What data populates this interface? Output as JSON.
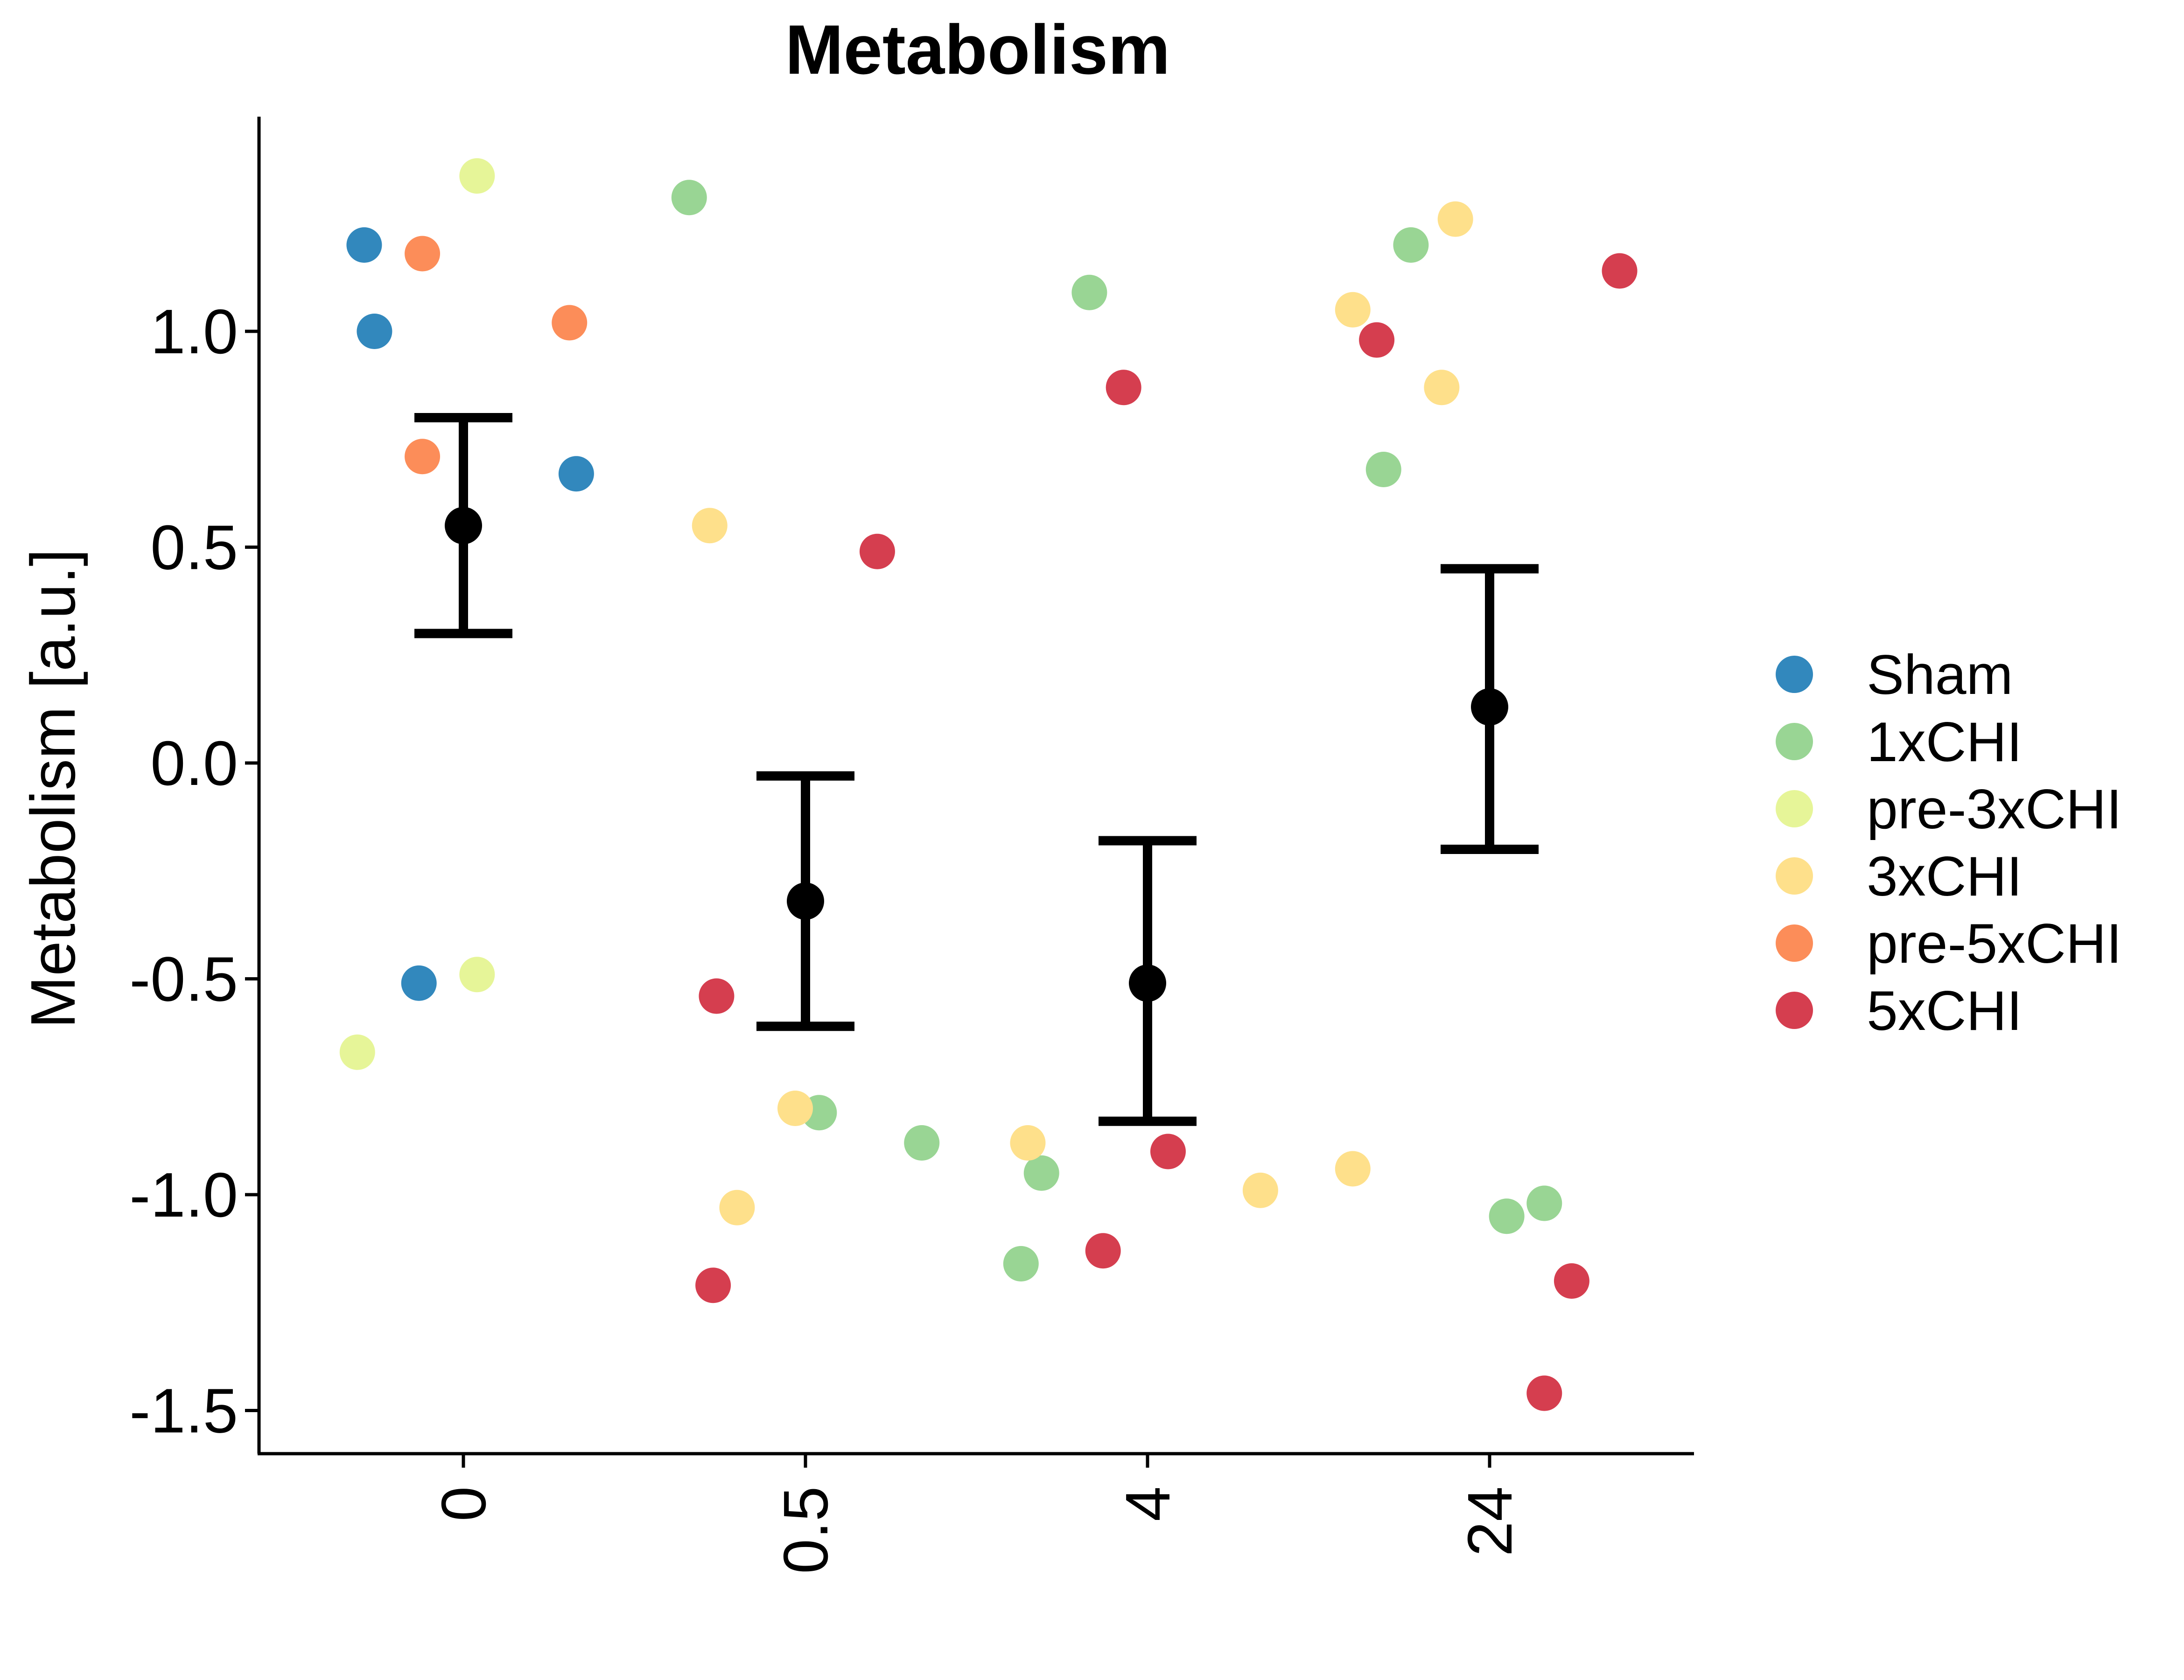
{
  "chart_data": {
    "type": "scatter",
    "title": "Metabolism",
    "xlabel": "",
    "ylabel": "Metabolism [a.u.]",
    "categories": [
      "0",
      "0.5",
      "4",
      "24"
    ],
    "yticks": [
      1.0,
      0.5,
      0.0,
      -0.5,
      -1.0,
      -1.5
    ],
    "ytick_labels": [
      "1.0",
      "0.5",
      "0.0",
      "-0.5",
      "-1.0",
      "-1.5"
    ],
    "ylim": [
      -1.6,
      1.5
    ],
    "grid": false,
    "legend_position": "right",
    "series": [
      {
        "name": "Sham",
        "color": "#3288bd",
        "points": [
          {
            "x": -0.29,
            "y": 1.2
          },
          {
            "x": -0.26,
            "y": 1.0
          },
          {
            "x": -0.13,
            "y": -0.51
          },
          {
            "x": 0.33,
            "y": 0.67
          }
        ]
      },
      {
        "name": "1xCHI",
        "color": "#99d594",
        "points": [
          {
            "x": 0.66,
            "y": 1.31
          },
          {
            "x": 1.04,
            "y": -0.81
          },
          {
            "x": 1.34,
            "y": -0.88
          },
          {
            "x": 1.63,
            "y": -1.16
          },
          {
            "x": 1.69,
            "y": -0.95
          },
          {
            "x": 1.83,
            "y": 1.09
          },
          {
            "x": 2.69,
            "y": 0.68
          },
          {
            "x": 2.77,
            "y": 1.2
          },
          {
            "x": 3.05,
            "y": -1.05
          },
          {
            "x": 3.16,
            "y": -1.02
          }
        ]
      },
      {
        "name": "pre-3xCHI",
        "color": "#e6f598",
        "points": [
          {
            "x": -0.31,
            "y": -0.67
          },
          {
            "x": 0.04,
            "y": 1.36
          },
          {
            "x": 0.04,
            "y": -0.49
          }
        ]
      },
      {
        "name": "3xCHI",
        "color": "#fee08b",
        "points": [
          {
            "x": 0.72,
            "y": 0.55
          },
          {
            "x": 0.8,
            "y": -1.03
          },
          {
            "x": 0.97,
            "y": -0.8
          },
          {
            "x": 1.65,
            "y": -0.88
          },
          {
            "x": 2.33,
            "y": -0.99
          },
          {
            "x": 2.6,
            "y": -0.94
          },
          {
            "x": 2.6,
            "y": 1.05
          },
          {
            "x": 2.86,
            "y": 0.87
          },
          {
            "x": 2.9,
            "y": 1.26
          }
        ]
      },
      {
        "name": "pre-5xCHI",
        "color": "#fc8d59",
        "points": [
          {
            "x": -0.12,
            "y": 1.18
          },
          {
            "x": -0.12,
            "y": 0.71
          },
          {
            "x": 0.31,
            "y": 1.02
          }
        ]
      },
      {
        "name": "5xCHI",
        "color": "#d53e4f",
        "points": [
          {
            "x": 0.74,
            "y": -0.54
          },
          {
            "x": 0.73,
            "y": -1.21
          },
          {
            "x": 1.21,
            "y": 0.49
          },
          {
            "x": 1.93,
            "y": 0.87
          },
          {
            "x": 1.87,
            "y": -1.13
          },
          {
            "x": 2.06,
            "y": -0.9
          },
          {
            "x": 2.67,
            "y": 0.98
          },
          {
            "x": 3.16,
            "y": -1.46
          },
          {
            "x": 3.24,
            "y": -1.2
          },
          {
            "x": 3.38,
            "y": 1.14
          }
        ]
      }
    ],
    "summary": [
      {
        "category": "0",
        "mean": 0.55,
        "lower": 0.3,
        "upper": 0.8
      },
      {
        "category": "0.5",
        "mean": -0.32,
        "lower": -0.61,
        "upper": -0.03
      },
      {
        "category": "4",
        "mean": -0.51,
        "lower": -0.83,
        "upper": -0.18
      },
      {
        "category": "24",
        "mean": 0.13,
        "lower": -0.2,
        "upper": 0.45
      }
    ]
  }
}
